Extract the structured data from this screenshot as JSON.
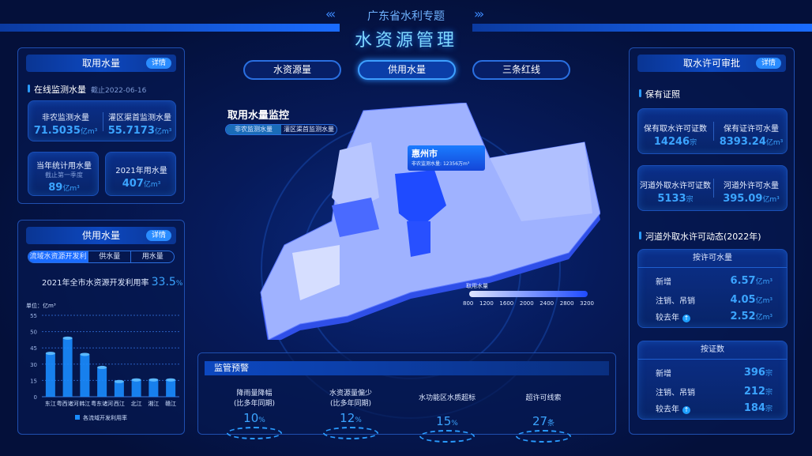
{
  "header": {
    "subtitle": "广东省水利专题",
    "title": "水资源管理",
    "nav": [
      {
        "label": "水资源量",
        "active": false
      },
      {
        "label": "供用水量",
        "active": true
      },
      {
        "label": "三条红线",
        "active": false
      }
    ]
  },
  "left_top": {
    "title": "取用水量",
    "detail": "详情",
    "section": "在线监测水量",
    "as_of": "截止2022-06-16",
    "m1": {
      "label": "非农监测水量",
      "value": "71.5035",
      "unit": "亿m³"
    },
    "m2": {
      "label": "灌区渠首监测水量",
      "value": "55.7173",
      "unit": "亿m³"
    },
    "m3": {
      "label": "当年统计用水量",
      "sub": "截止第一季度",
      "value": "89",
      "unit": "亿m³"
    },
    "m4": {
      "label": "2021年用水量",
      "value": "407",
      "unit": "亿m³"
    }
  },
  "left_bottom": {
    "title": "供用水量",
    "detail": "详情",
    "tabs": [
      "流域水资源开发利用",
      "供水量",
      "用水量"
    ],
    "rate_label": "2021年全市水资源开发利用率",
    "rate_value": "33.5",
    "rate_unit": "%"
  },
  "chart_data": {
    "type": "bar",
    "ylabel": "单位：亿m³",
    "yticks": [
      0,
      15,
      30,
      45,
      50,
      55
    ],
    "categories": [
      "东江",
      "粤西诸河",
      "韩江",
      "粤东诸河",
      "西江",
      "北江",
      "湘江",
      "赣江"
    ],
    "series": [
      {
        "name": "各流域开发利用率",
        "values": [
          40,
          48,
          39,
          27,
          14,
          15.5,
          15.5,
          15.5
        ]
      }
    ],
    "grid": true,
    "legend": "bottom",
    "color": "#1a8cff"
  },
  "map": {
    "title": "取用水量监控",
    "toggle": [
      "非农监测水量",
      "灌区渠首监测水量"
    ],
    "tooltip": {
      "city": "惠州市",
      "label": "非农监测水量:",
      "value": "12356",
      "unit": "万m³"
    },
    "legend_title": "取用水量",
    "legend_ticks": [
      "800",
      "1200",
      "1600",
      "2000",
      "2400",
      "2800",
      "3200"
    ]
  },
  "alerts": {
    "title": "监管预警",
    "items": [
      {
        "label": "降雨量降幅",
        "sub": "(比多年同期)",
        "value": "10",
        "unit": "%"
      },
      {
        "label": "水资源量偏少",
        "sub": "(比多年同期)",
        "value": "12",
        "unit": "%"
      },
      {
        "label": "水功能区水质超标",
        "sub": "",
        "value": "15",
        "unit": "%"
      },
      {
        "label": "超许可线索",
        "sub": "",
        "value": "27",
        "unit": "条"
      }
    ]
  },
  "right": {
    "title": "取水许可审批",
    "detail": "详情",
    "section1": "保有证照",
    "c1": {
      "label": "保有取水许可证数",
      "value": "14246",
      "unit": "宗"
    },
    "c2": {
      "label": "保有证许可水量",
      "value": "8393.24",
      "unit": "亿m³"
    },
    "c3": {
      "label": "河道外取水许可证数",
      "value": "5133",
      "unit": "宗"
    },
    "c4": {
      "label": "河道外许可水量",
      "value": "395.09",
      "unit": "亿m³"
    },
    "section2": "河道外取水许可动态(2022年)",
    "box1": {
      "title": "按许可水量",
      "rows": [
        {
          "label": "新增",
          "value": "6.57",
          "unit": "亿m³"
        },
        {
          "label": "注销、吊销",
          "value": "4.05",
          "unit": "亿m³"
        },
        {
          "label": "较去年",
          "value": "2.52",
          "unit": "亿m³"
        }
      ]
    },
    "box2": {
      "title": "按证数",
      "rows": [
        {
          "label": "新增",
          "value": "396",
          "unit": "宗"
        },
        {
          "label": "注销、吊销",
          "value": "212",
          "unit": "宗"
        },
        {
          "label": "较去年",
          "value": "184",
          "unit": "宗"
        }
      ]
    }
  }
}
